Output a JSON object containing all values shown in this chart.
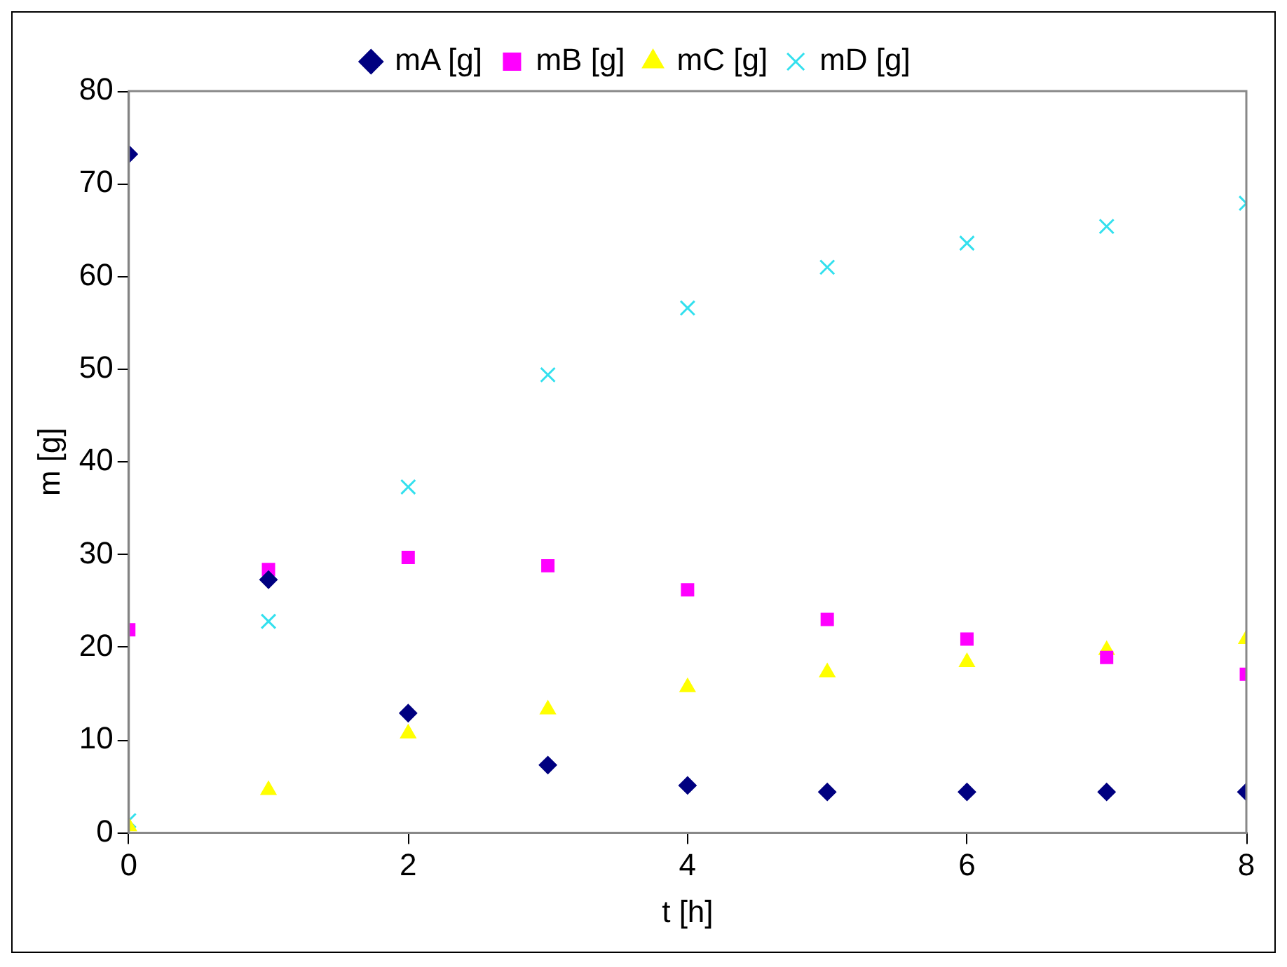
{
  "chart_data": {
    "type": "scatter",
    "xlabel": "t [h]",
    "ylabel": "m [g]",
    "x": [
      0,
      1,
      2,
      3,
      4,
      5,
      6,
      7,
      8
    ],
    "series": [
      {
        "name": "mA [g]",
        "color": "#000080",
        "marker": "diamond",
        "values": [
          73.2,
          27.3,
          12.9,
          7.3,
          5.1,
          4.4,
          4.4,
          4.4,
          4.4
        ]
      },
      {
        "name": "mB [g]",
        "color": "#ff00ff",
        "marker": "square",
        "values": [
          21.9,
          28.4,
          29.7,
          28.8,
          26.2,
          23.0,
          20.9,
          18.9,
          17.1
        ]
      },
      {
        "name": "mC [g]",
        "color": "#ffff00",
        "marker": "triangle",
        "values": [
          0.7,
          4.6,
          10.7,
          13.3,
          15.7,
          17.3,
          18.4,
          19.7,
          20.9
        ]
      },
      {
        "name": "mD [g]",
        "color": "#33e0ee",
        "marker": "cross",
        "values": [
          1.3,
          22.8,
          37.3,
          49.4,
          56.6,
          61.0,
          63.6,
          65.4,
          67.9
        ]
      }
    ],
    "xlim": [
      0,
      8
    ],
    "xticks": [
      0,
      2,
      4,
      6,
      8
    ],
    "ylim": [
      0,
      80
    ],
    "yticks": [
      0,
      10,
      20,
      30,
      40,
      50,
      60,
      70,
      80
    ],
    "grid": false,
    "legend": "top"
  }
}
